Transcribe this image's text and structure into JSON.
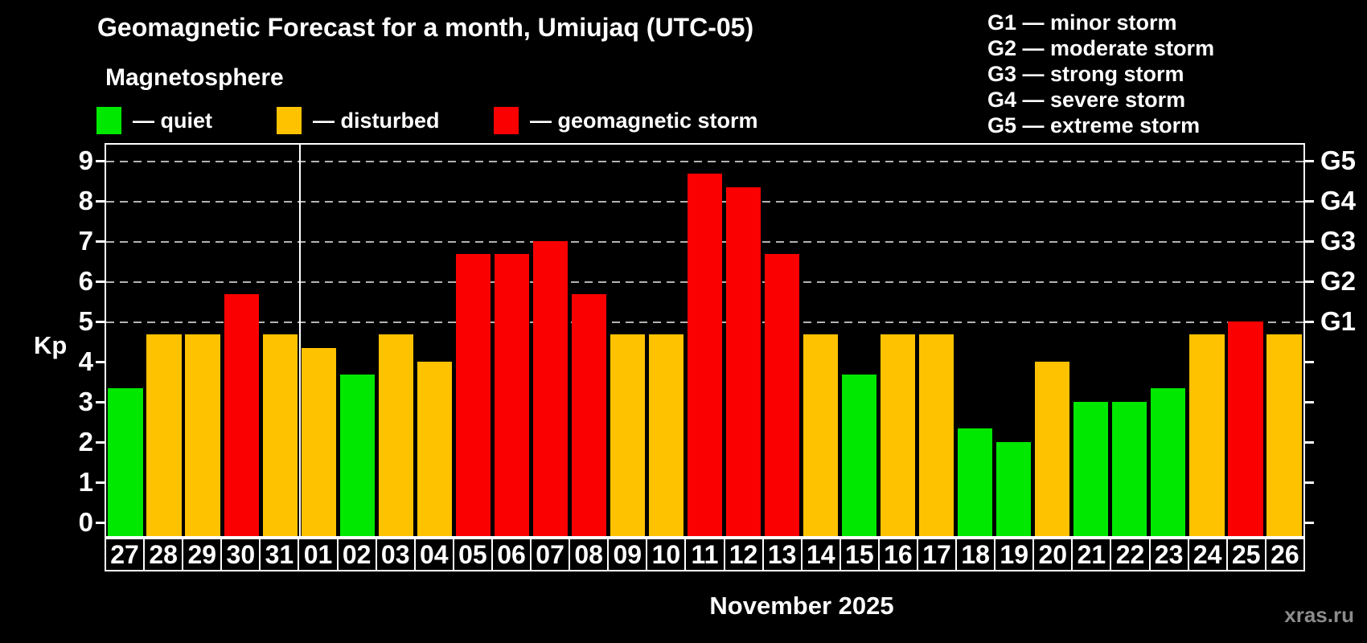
{
  "title": "Geomagnetic Forecast for a month, Umiujaq (UTC-05)",
  "subtitle": "Magnetosphere",
  "legend": [
    {
      "key": "quiet",
      "label": "— quiet",
      "color": "#00e800"
    },
    {
      "key": "disturbed",
      "label": "— disturbed",
      "color": "#ffc200"
    },
    {
      "key": "storm",
      "label": "— geomagnetic storm",
      "color": "#fb0000"
    }
  ],
  "g_legend": [
    "G1 — minor storm",
    "G2 — moderate storm",
    "G3 — strong storm",
    "G4 — severe storm",
    "G5 — extreme storm"
  ],
  "watermark": "xras.ru",
  "chart_data": {
    "type": "bar",
    "title": "Geomagnetic Forecast for a month, Umiujaq (UTC-05)",
    "ylabel": "Kp",
    "xlabel": "November 2025",
    "ylim": [
      0,
      9.5
    ],
    "yticks": [
      "0",
      "1",
      "2",
      "3",
      "4",
      "5",
      "6",
      "7",
      "8",
      "9"
    ],
    "gridlines_at_kp": [
      5,
      6,
      7,
      8,
      9
    ],
    "grid": "dashed horizontal at G-levels only",
    "legend_position": "top-left",
    "right_axis_labels": [
      {
        "kp": 5,
        "label": "G1"
      },
      {
        "kp": 6,
        "label": "G2"
      },
      {
        "kp": 7,
        "label": "G3"
      },
      {
        "kp": 8,
        "label": "G4"
      },
      {
        "kp": 9,
        "label": "G5"
      }
    ],
    "categories": [
      "27",
      "28",
      "29",
      "30",
      "31",
      "01",
      "02",
      "03",
      "04",
      "05",
      "06",
      "07",
      "08",
      "09",
      "10",
      "11",
      "12",
      "13",
      "14",
      "15",
      "16",
      "17",
      "18",
      "19",
      "20",
      "21",
      "22",
      "23",
      "24",
      "25",
      "26"
    ],
    "values": [
      3.33,
      4.67,
      4.67,
      5.67,
      4.67,
      4.33,
      3.67,
      4.67,
      4.0,
      6.67,
      6.67,
      7.0,
      5.67,
      4.67,
      4.67,
      8.67,
      8.33,
      6.67,
      4.67,
      3.67,
      4.67,
      4.67,
      2.33,
      2.0,
      4.0,
      3.0,
      3.0,
      3.33,
      4.67,
      5.0,
      4.67
    ],
    "statuses": [
      "quiet",
      "disturbed",
      "disturbed",
      "storm",
      "disturbed",
      "disturbed",
      "quiet",
      "disturbed",
      "disturbed",
      "storm",
      "storm",
      "storm",
      "storm",
      "disturbed",
      "disturbed",
      "storm",
      "storm",
      "storm",
      "disturbed",
      "quiet",
      "disturbed",
      "disturbed",
      "quiet",
      "quiet",
      "disturbed",
      "quiet",
      "quiet",
      "quiet",
      "disturbed",
      "storm",
      "disturbed"
    ],
    "month_separator_after_index": 4
  }
}
